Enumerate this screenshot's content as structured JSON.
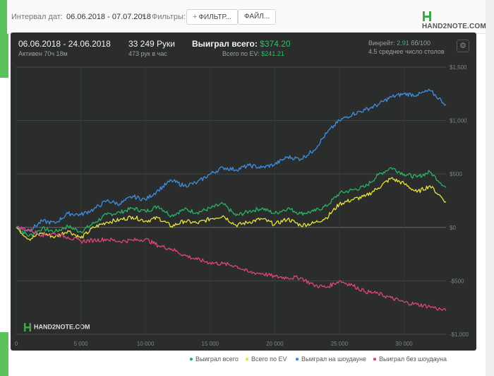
{
  "toolbar": {
    "interval_label": "Интервал дат:",
    "date_range": "06.06.2018 - 07.07.2018",
    "filters_label": "Фильтры:",
    "filter_button": "ФИЛЬТР...",
    "file_button": "ФАЙЛ...",
    "logo_text": "HAND2NOTE.COM"
  },
  "summary": {
    "period": "06.06.2018 - 24.06.2018",
    "active": "Активен 70ч 18м",
    "hands": "33 249 Руки",
    "hands_per_hour": "473 рук в час",
    "won_label": "Выиграл всего:",
    "won_value": "$374.20",
    "ev_label": "Всего по EV:",
    "ev_value": "$241.21",
    "winrate_label": "Винрейт:",
    "winrate_value": "2.91",
    "winrate_tail": "бб/100",
    "tables": "4.5 среднее число столов"
  },
  "watermark": "HAND2NOTE.COM",
  "colors": {
    "total": "#28b463",
    "ev": "#e7e338",
    "showdown": "#3f8fe0",
    "nonshowdown": "#e0457a"
  },
  "chart_data": {
    "type": "line",
    "xlabel": "",
    "ylabel": "",
    "x_ticks": [
      0,
      5000,
      10000,
      15000,
      20000,
      25000,
      30000
    ],
    "x_tick_labels": [
      "0",
      "5 000",
      "10 000",
      "15 000",
      "20 000",
      "25 000",
      "30 000"
    ],
    "y_ticks": [
      1500,
      1000,
      500,
      0,
      -500,
      -1000
    ],
    "y_tick_labels": [
      "$1,500",
      "$1,000",
      "$500",
      "$0",
      "-$500",
      "-$1,000"
    ],
    "xlim": [
      0,
      33249
    ],
    "ylim": [
      -1000,
      1500
    ],
    "grid": true,
    "legend_position": "bottom-right",
    "series": [
      {
        "name": "Выиграл всего",
        "x": [
          0,
          1000,
          2000,
          3000,
          4000,
          5000,
          6000,
          7000,
          8000,
          9000,
          10000,
          11000,
          12000,
          13000,
          14000,
          15000,
          16000,
          17000,
          18000,
          19000,
          20000,
          21000,
          22000,
          23000,
          24000,
          25000,
          26000,
          27000,
          28000,
          29000,
          30000,
          31000,
          32000,
          33249
        ],
        "values": [
          0,
          -80,
          -10,
          -40,
          10,
          -40,
          40,
          120,
          140,
          180,
          150,
          200,
          110,
          170,
          140,
          180,
          220,
          110,
          150,
          180,
          130,
          180,
          130,
          150,
          200,
          320,
          350,
          380,
          490,
          560,
          500,
          470,
          520,
          374
        ]
      },
      {
        "name": "Всего по EV",
        "x": [
          0,
          1000,
          2000,
          3000,
          4000,
          5000,
          6000,
          7000,
          8000,
          9000,
          10000,
          11000,
          12000,
          13000,
          14000,
          15000,
          16000,
          17000,
          18000,
          19000,
          20000,
          21000,
          22000,
          23000,
          24000,
          25000,
          26000,
          27000,
          28000,
          29000,
          30000,
          31000,
          32000,
          33249
        ],
        "values": [
          0,
          -110,
          -50,
          -90,
          -30,
          -100,
          0,
          50,
          70,
          100,
          60,
          90,
          10,
          60,
          40,
          80,
          110,
          20,
          50,
          80,
          30,
          80,
          20,
          40,
          90,
          220,
          260,
          290,
          370,
          460,
          410,
          330,
          390,
          241
        ]
      },
      {
        "name": "Выиграл на шоудауне",
        "x": [
          0,
          1000,
          2000,
          3000,
          4000,
          5000,
          6000,
          7000,
          8000,
          9000,
          10000,
          11000,
          12000,
          13000,
          14000,
          15000,
          16000,
          17000,
          18000,
          19000,
          20000,
          21000,
          22000,
          23000,
          24000,
          25000,
          26000,
          27000,
          28000,
          29000,
          30000,
          31000,
          32000,
          33249
        ],
        "values": [
          0,
          -30,
          60,
          40,
          130,
          120,
          170,
          250,
          220,
          290,
          260,
          350,
          440,
          390,
          420,
          500,
          560,
          540,
          580,
          560,
          590,
          660,
          640,
          720,
          880,
          1000,
          1060,
          1100,
          1150,
          1220,
          1250,
          1240,
          1280,
          1150
        ]
      },
      {
        "name": "Выиграл без шоудауна",
        "x": [
          0,
          1000,
          2000,
          3000,
          4000,
          5000,
          6000,
          7000,
          8000,
          9000,
          10000,
          11000,
          12000,
          13000,
          14000,
          15000,
          16000,
          17000,
          18000,
          19000,
          20000,
          21000,
          22000,
          23000,
          24000,
          25000,
          26000,
          27000,
          28000,
          29000,
          30000,
          31000,
          32000,
          33249
        ],
        "values": [
          0,
          -20,
          -70,
          -60,
          -90,
          -130,
          -120,
          -110,
          -130,
          -120,
          -110,
          -170,
          -200,
          -260,
          -300,
          -330,
          -340,
          -360,
          -420,
          -430,
          -460,
          -470,
          -470,
          -540,
          -560,
          -500,
          -540,
          -600,
          -620,
          -660,
          -700,
          -720,
          -740,
          -780
        ]
      }
    ]
  }
}
